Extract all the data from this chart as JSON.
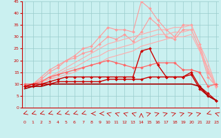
{
  "x": [
    0,
    1,
    2,
    3,
    4,
    5,
    6,
    7,
    8,
    9,
    10,
    11,
    12,
    13,
    14,
    15,
    16,
    17,
    18,
    19,
    20,
    21,
    22,
    23
  ],
  "series": [
    {
      "color": "#ff9999",
      "linewidth": 0.8,
      "marker": "D",
      "markersize": 2.0,
      "values": [
        9,
        10,
        12,
        15,
        17,
        20,
        22,
        25,
        26,
        30,
        34,
        33,
        33,
        32,
        45,
        42,
        37,
        33,
        30,
        35,
        35,
        27,
        15,
        9
      ]
    },
    {
      "color": "#ff9999",
      "linewidth": 0.8,
      "marker": "D",
      "markersize": 2.0,
      "values": [
        9,
        10,
        13,
        16,
        18,
        20,
        21,
        23,
        24,
        27,
        30,
        29,
        31,
        28,
        32,
        38,
        35,
        30,
        29,
        33,
        33,
        25,
        13,
        9
      ]
    },
    {
      "color": "#ffaaaa",
      "linewidth": 0.8,
      "marker": null,
      "markersize": 0,
      "values": [
        9,
        10,
        11,
        13,
        15,
        17,
        19,
        21,
        23,
        25,
        27,
        28,
        29,
        30,
        31,
        32,
        33,
        33,
        34,
        34,
        35,
        27,
        19,
        9
      ]
    },
    {
      "color": "#ffaaaa",
      "linewidth": 0.8,
      "marker": null,
      "markersize": 0,
      "values": [
        9,
        10,
        11,
        12,
        14,
        16,
        17,
        19,
        21,
        22,
        24,
        25,
        26,
        27,
        29,
        30,
        31,
        31,
        32,
        32,
        33,
        25,
        17,
        9
      ]
    },
    {
      "color": "#ffaaaa",
      "linewidth": 0.8,
      "marker": null,
      "markersize": 0,
      "values": [
        9,
        10,
        11,
        12,
        13,
        14,
        15,
        17,
        18,
        19,
        21,
        22,
        23,
        24,
        26,
        27,
        28,
        29,
        30,
        30,
        31,
        24,
        16,
        8
      ]
    },
    {
      "color": "#ff6666",
      "linewidth": 0.9,
      "marker": "D",
      "markersize": 2.0,
      "values": [
        10,
        10,
        11,
        13,
        14,
        15,
        16,
        17,
        18,
        19,
        20,
        19,
        18,
        17,
        17,
        18,
        19,
        19,
        19,
        16,
        16,
        15,
        9,
        10
      ]
    },
    {
      "color": "#cc0000",
      "linewidth": 1.0,
      "marker": "D",
      "markersize": 2.0,
      "values": [
        9,
        10,
        10,
        11,
        12,
        13,
        13,
        13,
        13,
        13,
        13,
        13,
        13,
        13,
        24,
        25,
        18,
        13,
        13,
        13,
        15,
        9,
        6,
        3
      ]
    },
    {
      "color": "#cc0000",
      "linewidth": 1.0,
      "marker": "D",
      "markersize": 2.0,
      "values": [
        9,
        9,
        10,
        10,
        11,
        11,
        11,
        11,
        11,
        11,
        12,
        12,
        12,
        12,
        12,
        13,
        13,
        13,
        13,
        13,
        14,
        8,
        5,
        3
      ]
    },
    {
      "color": "#aa0000",
      "linewidth": 1.2,
      "marker": null,
      "markersize": 0,
      "values": [
        8,
        9,
        9,
        10,
        10,
        10,
        10,
        10,
        10,
        10,
        10,
        10,
        10,
        10,
        10,
        10,
        10,
        10,
        10,
        10,
        10,
        9,
        5,
        3
      ]
    }
  ],
  "xlim": [
    -0.3,
    23.3
  ],
  "ylim": [
    0,
    45
  ],
  "yticks": [
    0,
    5,
    10,
    15,
    20,
    25,
    30,
    35,
    40,
    45
  ],
  "xticks": [
    0,
    1,
    2,
    3,
    4,
    5,
    6,
    7,
    8,
    9,
    10,
    11,
    12,
    13,
    14,
    15,
    16,
    17,
    18,
    19,
    20,
    21,
    22,
    23
  ],
  "background_color": "#caf0f0",
  "grid_color": "#99cccc",
  "xlabel_color": "#cc0000",
  "tick_color": "#cc0000"
}
